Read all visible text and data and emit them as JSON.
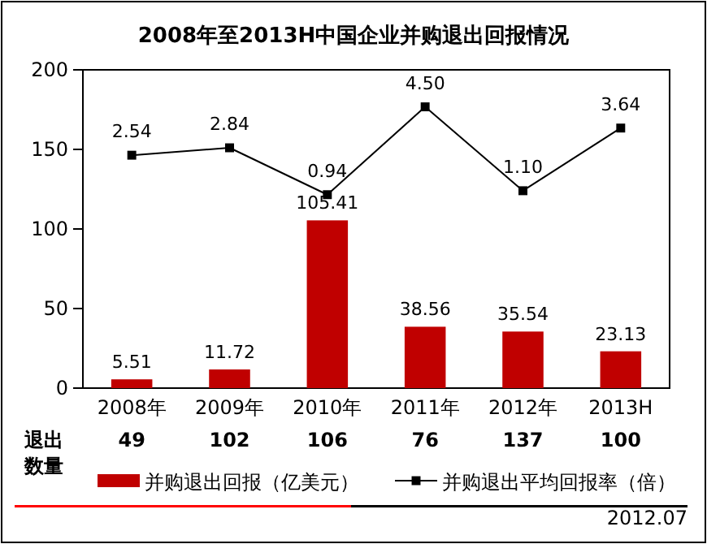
{
  "chart_data": {
    "type": "bar",
    "title": "2008年至2013H中国企业并购退出回报情况",
    "categories": [
      "2008年",
      "2009年",
      "2010年",
      "2011年",
      "2012年",
      "2013H"
    ],
    "series": [
      {
        "name": "并购退出回报（亿美元）",
        "color": "#c00000",
        "values": [
          5.51,
          11.72,
          105.41,
          38.56,
          35.54,
          23.13
        ],
        "value_labels": [
          "5.51",
          "11.72",
          "105.41",
          "38.56",
          "35.54",
          "23.13"
        ]
      },
      {
        "name": "并购退出平均回报率（倍）",
        "type": "line",
        "axis": "y2",
        "color": "#000000",
        "marker": "square",
        "values": [
          2.54,
          2.84,
          0.94,
          4.5,
          1.1,
          3.64
        ],
        "value_labels": [
          "2.54",
          "2.84",
          "0.94",
          "4.50",
          "1.10",
          "3.64"
        ]
      }
    ],
    "ylim": [
      0,
      200
    ],
    "yticks": [
      0,
      50,
      100,
      150,
      200
    ],
    "y2lim": [
      -6.9,
      6.0
    ],
    "tick_labels": [
      "x",
      "y"
    ],
    "grid": false,
    "legend": "bottom",
    "annotations": [
      "退出数量",
      "49",
      "102",
      "106",
      "76",
      "137",
      "100",
      "2012.07"
    ]
  }
}
